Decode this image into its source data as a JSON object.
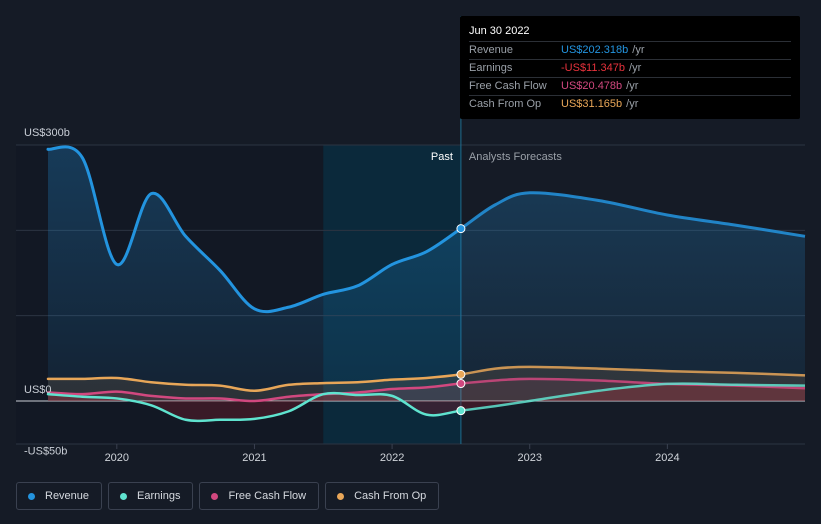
{
  "colors": {
    "background": "#151b26",
    "revenue": "#2394df",
    "earnings": "#5fe3cf",
    "free_cash_flow": "#d1487f",
    "cash_from_op": "#e8a658",
    "highlight": "#0a2f43"
  },
  "tooltip": {
    "date": "Jun 30 2022",
    "rows": [
      {
        "label": "Revenue",
        "value": "US$202.318b",
        "unit": "/yr",
        "color": "#2394df"
      },
      {
        "label": "Earnings",
        "value": "-US$11.347b",
        "unit": "/yr",
        "color": "#e8323c"
      },
      {
        "label": "Free Cash Flow",
        "value": "US$20.478b",
        "unit": "/yr",
        "color": "#d1487f"
      },
      {
        "label": "Cash From Op",
        "value": "US$31.165b",
        "unit": "/yr",
        "color": "#e8a658"
      }
    ]
  },
  "legend": [
    {
      "label": "Revenue",
      "color": "#2394df"
    },
    {
      "label": "Earnings",
      "color": "#5fe3cf"
    },
    {
      "label": "Free Cash Flow",
      "color": "#d1487f"
    },
    {
      "label": "Cash From Op",
      "color": "#e8a658"
    }
  ],
  "chart_data": {
    "type": "line",
    "title": "",
    "xlabel": "",
    "ylabel": "",
    "ylim": [
      -50,
      300
    ],
    "xlim": [
      2019.5,
      2025.0
    ],
    "divider_x": 2022.5,
    "highlight_range": [
      2021.5,
      2022.5
    ],
    "labels": {
      "past": "Past",
      "forecast": "Analysts Forecasts"
    },
    "y_labels": [
      {
        "text": "US$300b",
        "value": 300
      },
      {
        "text": "US$0",
        "value": 0
      },
      {
        "text": "-US$50b",
        "value": -50
      }
    ],
    "gridlines": [
      300,
      200,
      100,
      0
    ],
    "x_ticks": [
      {
        "text": "2020",
        "value": 2020
      },
      {
        "text": "2021",
        "value": 2021
      },
      {
        "text": "2022",
        "value": 2022
      },
      {
        "text": "2023",
        "value": 2023
      },
      {
        "text": "2024",
        "value": 2024
      }
    ],
    "series": [
      {
        "name": "Revenue",
        "x": [
          2019.5,
          2019.75,
          2020.0,
          2020.25,
          2020.5,
          2020.75,
          2021.0,
          2021.25,
          2021.5,
          2021.75,
          2022.0,
          2022.25,
          2022.5,
          2022.75,
          2023.0,
          2023.5,
          2024.0,
          2024.5,
          2025.0
        ],
        "values": [
          295,
          285,
          160,
          243,
          193,
          153,
          108,
          110,
          125,
          135,
          160,
          175,
          202,
          230,
          244,
          235,
          218,
          206,
          193
        ]
      },
      {
        "name": "Earnings",
        "x": [
          2019.5,
          2019.75,
          2020.0,
          2020.25,
          2020.5,
          2020.75,
          2021.0,
          2021.25,
          2021.5,
          2021.75,
          2022.0,
          2022.25,
          2022.5,
          2022.75,
          2023.0,
          2023.5,
          2024.0,
          2024.5,
          2025.0
        ],
        "values": [
          8,
          5,
          3,
          -5,
          -22,
          -22,
          -21,
          -12,
          8,
          7,
          6,
          -16,
          -11.347,
          -6,
          0,
          12,
          20,
          19,
          18
        ]
      },
      {
        "name": "Free Cash Flow",
        "x": [
          2019.5,
          2019.75,
          2020.0,
          2020.25,
          2020.5,
          2020.75,
          2021.0,
          2021.25,
          2021.5,
          2021.75,
          2022.0,
          2022.25,
          2022.5,
          2022.75,
          2023.0,
          2023.5,
          2024.0,
          2024.5,
          2025.0
        ],
        "values": [
          10,
          8,
          11,
          6,
          3,
          3,
          0,
          5,
          8,
          10,
          14,
          16,
          20.478,
          24,
          26,
          24,
          20,
          18,
          15
        ]
      },
      {
        "name": "Cash From Op",
        "x": [
          2019.5,
          2019.75,
          2020.0,
          2020.25,
          2020.5,
          2020.75,
          2021.0,
          2021.25,
          2021.5,
          2021.75,
          2022.0,
          2022.25,
          2022.5,
          2022.75,
          2023.0,
          2023.5,
          2024.0,
          2024.5,
          2025.0
        ],
        "values": [
          26,
          26,
          27,
          22,
          19,
          18,
          12,
          19,
          21,
          22,
          25,
          27,
          31.165,
          38,
          40,
          38,
          35,
          33,
          30
        ]
      }
    ]
  }
}
